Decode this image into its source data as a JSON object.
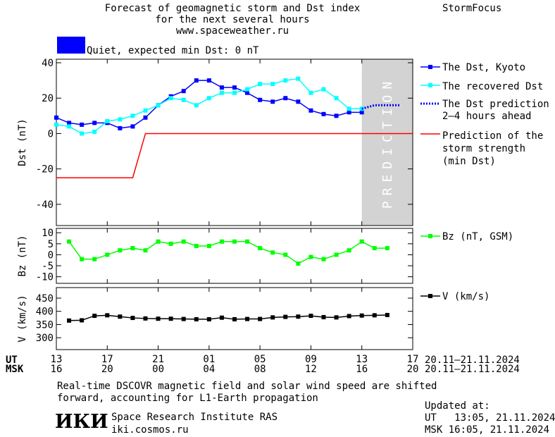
{
  "header": {
    "title_line1": "Forecast of geomagnetic storm and Dst index",
    "title_line2": "for the next several hours",
    "title_line3": "www.spaceweather.ru",
    "brand": "StormFocus"
  },
  "status": {
    "label": "Quiet, expected min Dst: 0 nT",
    "color": "#0000ff"
  },
  "legend": {
    "dst_kyoto": "The Dst, Kyoto",
    "recovered": "The recovered Dst",
    "prediction_line1": "The Dst prediction",
    "prediction_line2": "2–4 hours ahead",
    "strength_line1": "Prediction of the",
    "strength_line2": "storm strength",
    "strength_line3": "(min Dst)",
    "bz": "Bz (nT, GSM)",
    "v": "V (km/s)"
  },
  "footer": {
    "note_line1": "Real-time DSCOVR magnetic field and solar wind speed are shifted",
    "note_line2": "forward, accounting for L1-Earth propagation",
    "org": "Space Research Institute RAS",
    "site": "iki.cosmos.ru",
    "logo": "ИКИ",
    "updated_label": "Updated at:",
    "updated_ut": "UT   13:05, 21.11.2024",
    "updated_msk": "MSK 16:05, 21.11.2024"
  },
  "chart_data": {
    "type": "line",
    "x_axis": {
      "ut_label": "UT",
      "msk_label": "MSK",
      "ut_ticks": [
        "13",
        "17",
        "21",
        "01",
        "05",
        "09",
        "13",
        "17"
      ],
      "msk_ticks": [
        "16",
        "20",
        "00",
        "04",
        "08",
        "12",
        "16",
        "20"
      ],
      "ut_range_text": "20.11–21.11.2024",
      "msk_range_text": "20.11–21.11.2024",
      "xlim_hours": [
        0,
        28
      ]
    },
    "prediction_band": {
      "label": "PREDICTION",
      "x_hours": [
        24,
        28
      ],
      "color": "#d3d3d3"
    },
    "panels": [
      {
        "ylabel": "Dst (nT)",
        "ylim": [
          -52,
          42
        ],
        "yticks": [
          -40,
          -20,
          0,
          20,
          40
        ],
        "series": [
          {
            "name": "The Dst, Kyoto",
            "color": "#0000ff",
            "marker": "square",
            "x": [
              0,
              1,
              2,
              3,
              4,
              5,
              6,
              7,
              8,
              9,
              10,
              11,
              12,
              13,
              14,
              15,
              16,
              17,
              18,
              19,
              20,
              21,
              22,
              23,
              24
            ],
            "y": [
              9,
              6,
              5,
              6,
              6,
              3,
              4,
              9,
              16,
              21,
              24,
              30,
              30,
              26,
              26,
              23,
              19,
              18,
              20,
              18,
              13,
              11,
              10,
              12,
              12
            ]
          },
          {
            "name": "The recovered Dst",
            "color": "#00ffff",
            "marker": "square",
            "x": [
              0,
              1,
              2,
              3,
              4,
              5,
              6,
              7,
              8,
              9,
              10,
              11,
              12,
              13,
              14,
              15,
              16,
              17,
              18,
              19,
              20,
              21,
              22,
              23,
              24
            ],
            "y": [
              5,
              4,
              0,
              1,
              7,
              8,
              10,
              13,
              16,
              20,
              19,
              16,
              20,
              23,
              23,
              25,
              28,
              28,
              30,
              31,
              23,
              25,
              20,
              14,
              14
            ]
          },
          {
            "name": "The Dst prediction 2–4 hours ahead",
            "color": "#0000ff",
            "style": "dotted",
            "x": [
              24,
              25,
              26,
              27
            ],
            "y": [
              14,
              16,
              16,
              16
            ]
          },
          {
            "name": "Prediction of the storm strength (min Dst)",
            "color": "#ff0000",
            "style": "solid",
            "x": [
              0,
              6,
              7,
              28
            ],
            "y": [
              -25,
              -25,
              0,
              0
            ]
          }
        ]
      },
      {
        "ylabel": "Bz (nT)",
        "ylim": [
          -13,
          12
        ],
        "yticks": [
          -10,
          -5,
          0,
          5,
          10
        ],
        "series": [
          {
            "name": "Bz (nT, GSM)",
            "color": "#00ff00",
            "marker": "square",
            "x": [
              1,
              2,
              3,
              4,
              5,
              6,
              7,
              8,
              9,
              10,
              11,
              12,
              13,
              14,
              15,
              16,
              17,
              18,
              19,
              20,
              21,
              22,
              23,
              24,
              25,
              26
            ],
            "y": [
              6,
              -2,
              -2,
              0,
              2,
              3,
              2,
              6,
              5,
              6,
              4,
              4,
              6,
              6,
              6,
              3,
              1,
              0,
              -4,
              -1,
              -2,
              0,
              2,
              6,
              3,
              3
            ]
          }
        ]
      },
      {
        "ylabel": "V (km/s)",
        "ylim": [
          255,
          490
        ],
        "yticks": [
          300,
          350,
          400,
          450
        ],
        "series": [
          {
            "name": "V (km/s)",
            "color": "#000000",
            "marker": "square",
            "x": [
              1,
              2,
              3,
              4,
              5,
              6,
              7,
              8,
              9,
              10,
              11,
              12,
              13,
              14,
              15,
              16,
              17,
              18,
              19,
              20,
              21,
              22,
              23,
              24,
              25,
              26
            ],
            "y": [
              365,
              366,
              383,
              385,
              380,
              375,
              373,
              372,
              372,
              371,
              370,
              370,
              376,
              370,
              371,
              371,
              377,
              379,
              380,
              383,
              378,
              377,
              382,
              384,
              385,
              386
            ]
          }
        ]
      }
    ]
  }
}
